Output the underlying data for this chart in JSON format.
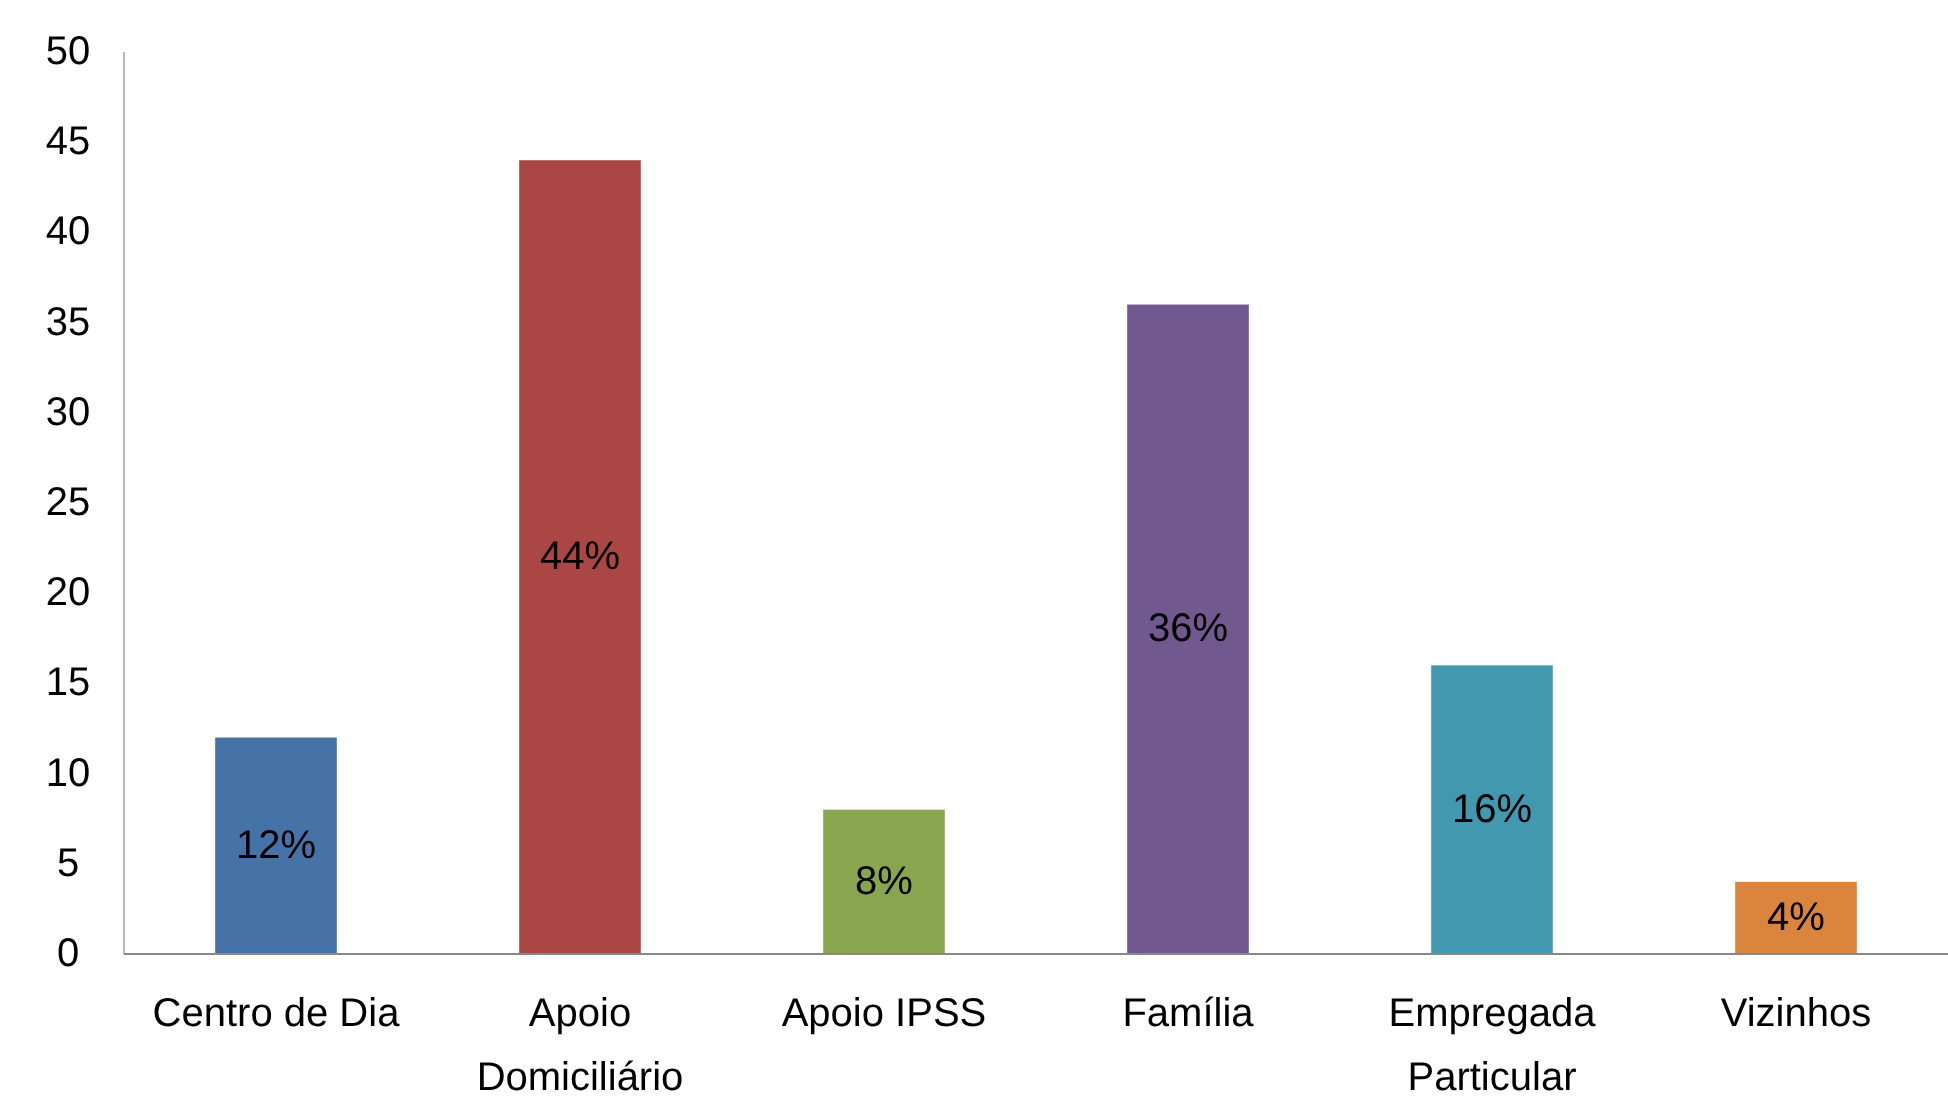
{
  "chart_data": {
    "type": "bar",
    "categories": [
      "Centro de Dia",
      "Apoio Domiciliário",
      "Apoio IPSS",
      "Família",
      "Empregada Particular",
      "Vizinhos"
    ],
    "values": [
      12,
      44,
      8,
      36,
      16,
      4
    ],
    "colors": [
      "#4572a7",
      "#aa4643",
      "#89a54e",
      "#71588f",
      "#4198af",
      "#db843d"
    ],
    "value_labels": [
      "12%",
      "44%",
      "8%",
      "36%",
      "16%",
      "4%"
    ],
    "ylim": [
      0,
      50
    ],
    "yticks": [
      0,
      5,
      10,
      15,
      20,
      25,
      30,
      35,
      40,
      45,
      50
    ],
    "grid": false
  }
}
